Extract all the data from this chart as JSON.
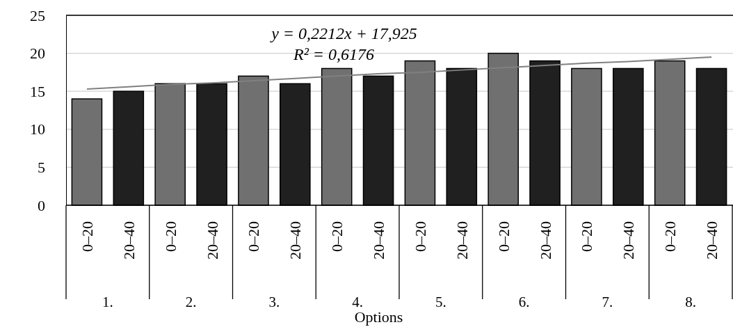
{
  "chart_data": {
    "type": "bar",
    "xlabel": "Options",
    "categories": [
      "0–20",
      "20–40",
      "0–20",
      "20–40",
      "0–20",
      "20–40",
      "0–20",
      "20–40",
      "0–20",
      "20–40",
      "0–20",
      "20–40",
      "0–20",
      "20–40",
      "0–20",
      "20–40"
    ],
    "series": [
      {
        "colors": [
          "#707070",
          "#202020",
          "#707070",
          "#202020",
          "#707070",
          "#202020",
          "#707070",
          "#202020",
          "#707070",
          "#202020",
          "#707070",
          "#202020",
          "#707070",
          "#202020",
          "#707070",
          "#202020"
        ],
        "values": [
          14,
          15,
          16,
          16,
          17,
          16,
          18,
          17,
          19,
          18,
          20,
          19,
          18,
          18,
          19,
          18
        ]
      },
      {
        "type": "line",
        "color": "#808080",
        "line_style": "solid",
        "marker": "none",
        "values": [
          15.3,
          15.6,
          15.9,
          16.1,
          16.4,
          16.7,
          17.0,
          17.3,
          17.5,
          17.8,
          18.1,
          18.4,
          18.7,
          18.9,
          19.2,
          19.5
        ]
      }
    ],
    "ylim": [
      0,
      25
    ],
    "yticks": [
      0,
      5,
      10,
      15,
      20,
      25
    ],
    "grid": "y",
    "annotations": [
      "y = 0,2212x + 17,925",
      "R² = 0,6176",
      "1.",
      "2.",
      "3.",
      "4.",
      "5.",
      "6.",
      "7.",
      "8."
    ]
  }
}
